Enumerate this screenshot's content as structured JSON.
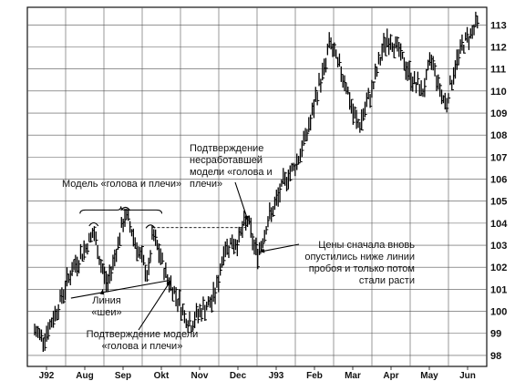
{
  "chart_data": {
    "type": "bar",
    "subtype": "ohlc",
    "grid": true,
    "y_ticks": [
      98,
      99,
      100,
      101,
      102,
      103,
      104,
      105,
      106,
      107,
      108,
      109,
      110,
      111,
      112,
      113
    ],
    "ylim": [
      97.5,
      113.8
    ],
    "x_ticks": [
      "J92",
      "Aug",
      "Sep",
      "Okt",
      "Nov",
      "Dec",
      "J93",
      "Feb",
      "Mar",
      "Apr",
      "May",
      "Jun"
    ],
    "price_path": [
      [
        0,
        99.1
      ],
      [
        8,
        98.8
      ],
      [
        14,
        99.4
      ],
      [
        22,
        100.4
      ],
      [
        32,
        101.8
      ],
      [
        44,
        102.8
      ],
      [
        52,
        103.6
      ],
      [
        58,
        102.2
      ],
      [
        64,
        101.2
      ],
      [
        72,
        102.8
      ],
      [
        80,
        104.4
      ],
      [
        86,
        103.6
      ],
      [
        92,
        102.6
      ],
      [
        100,
        101.6
      ],
      [
        104,
        103.5
      ],
      [
        110,
        102.6
      ],
      [
        116,
        101.6
      ],
      [
        120,
        101.2
      ],
      [
        126,
        100.6
      ],
      [
        132,
        99.8
      ],
      [
        138,
        99.4
      ],
      [
        144,
        99.9
      ],
      [
        150,
        100.2
      ],
      [
        156,
        100.4
      ],
      [
        162,
        101.4
      ],
      [
        166,
        102.7
      ],
      [
        172,
        103.1
      ],
      [
        178,
        103.1
      ],
      [
        184,
        103.8
      ],
      [
        188,
        104.2
      ],
      [
        192,
        103.2
      ],
      [
        196,
        102.6
      ],
      [
        200,
        103.1
      ],
      [
        204,
        103.9
      ],
      [
        208,
        104.4
      ],
      [
        212,
        104.8
      ],
      [
        216,
        105.4
      ],
      [
        222,
        106.1
      ],
      [
        228,
        106.5
      ],
      [
        232,
        106.9
      ],
      [
        238,
        107.8
      ],
      [
        244,
        108.8
      ],
      [
        250,
        110.2
      ],
      [
        256,
        111.1
      ],
      [
        260,
        112.3
      ],
      [
        264,
        111.6
      ],
      [
        268,
        111.1
      ],
      [
        274,
        110.4
      ],
      [
        280,
        109.0
      ],
      [
        286,
        108.4
      ],
      [
        292,
        109.3
      ],
      [
        298,
        110.2
      ],
      [
        304,
        111.4
      ],
      [
        310,
        112.4
      ],
      [
        318,
        112.1
      ],
      [
        326,
        111.2
      ],
      [
        334,
        110.4
      ],
      [
        342,
        110.0
      ],
      [
        350,
        111.5
      ],
      [
        356,
        110.2
      ],
      [
        362,
        109.4
      ],
      [
        366,
        110.2
      ],
      [
        370,
        111.0
      ],
      [
        376,
        112.0
      ],
      [
        384,
        112.6
      ],
      [
        390,
        113.1
      ]
    ]
  },
  "annotations": {
    "model": "Модель «голова и плечи»",
    "neck": [
      "Линия",
      "«шеи»"
    ],
    "confirm": [
      "Подтверждение модели",
      "«голова и плечи»"
    ],
    "failed": [
      "Подтверждение",
      "несработавшей",
      "модели «голова и",
      "плечи»"
    ],
    "prices": [
      "Цены сначала вновь",
      "опустились ниже линии",
      "пробоя и только потом",
      "стали расти"
    ]
  }
}
